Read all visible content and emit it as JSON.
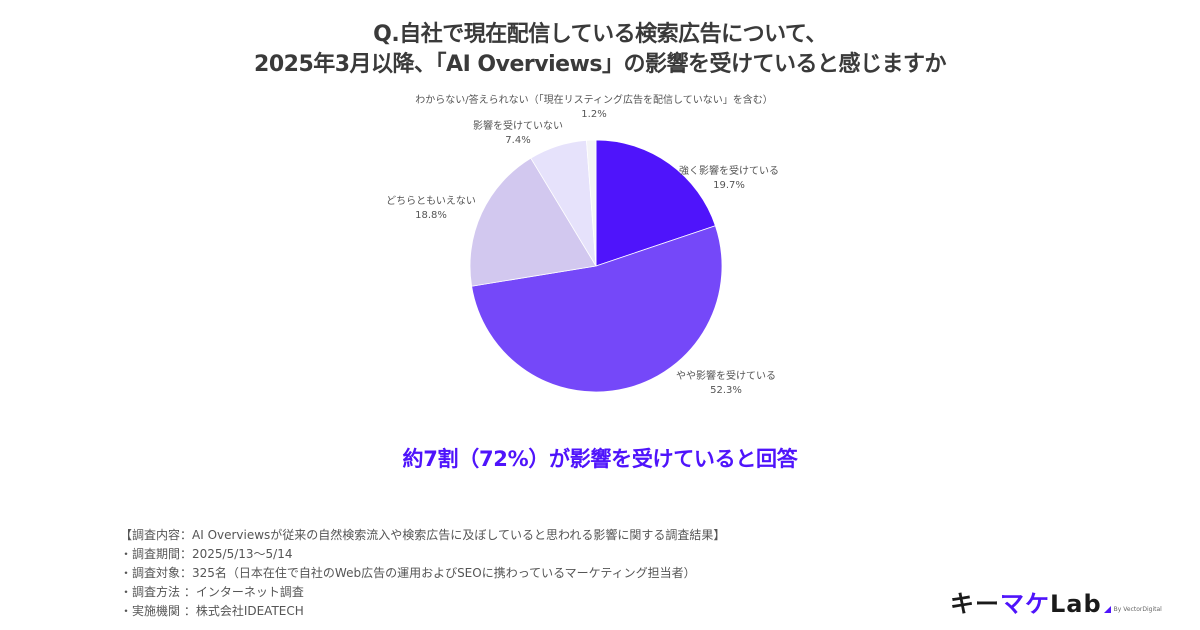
{
  "title": {
    "line1": "Q.自社で現在配信している検索広告について、",
    "line2": "2025年3月以降、「AI Overviews」の影響を受けていると感じますか"
  },
  "chart_data": {
    "type": "pie",
    "title": "Q.自社で現在配信している検索広告について、2025年3月以降、「AI Overviews」の影響を受けていると感じますか",
    "start_angle_deg": 0,
    "direction": "clockwise",
    "categories": [
      "強く影響を受けている",
      "やや影響を受けている",
      "どちらともいえない",
      "影響を受けていない",
      "わからない/答えられない（「現在リスティング広告を配信していない」を含む）"
    ],
    "values": [
      19.7,
      52.3,
      18.8,
      7.4,
      1.2
    ],
    "value_labels": [
      "19.7%",
      "52.3%",
      "18.8%",
      "7.4%",
      "1.2%"
    ],
    "colors": [
      "#4f14fb",
      "#7548f9",
      "#d2c8ef",
      "#e6e2fb",
      "#f4f4f6"
    ],
    "legend": "none (data labels outside slices)"
  },
  "labels": [
    {
      "name": "強く影響を受けている",
      "pct": "19.7%"
    },
    {
      "name": "やや影響を受けている",
      "pct": "52.3%"
    },
    {
      "name": "どちらともいえない",
      "pct": "18.8%"
    },
    {
      "name": "影響を受けていない",
      "pct": "7.4%"
    },
    {
      "name": "わからない/答えられない（「現在リスティング広告を配信していない」を含む）",
      "pct": "1.2%"
    }
  ],
  "highlight": "約7割（72%）が影響を受けていると回答",
  "notes": [
    "【調査内容：AI Overviewsが従来の自然検索流入や検索広告に及ぼしていると思われる影響に関する調査結果】",
    "・調査期間：2025/5/13〜5/14",
    "・調査対象：325名（日本在住で自社のWeb広告の運用およびSEOに携わっているマーケティング担当者）",
    "・調査方法 ：インターネット調査",
    "・実施機関 ：株式会社IDEATECH"
  ],
  "logo": {
    "part1": "キー",
    "part2": "マケ",
    "part3": "Lab",
    "by": "By VectorDigital"
  }
}
